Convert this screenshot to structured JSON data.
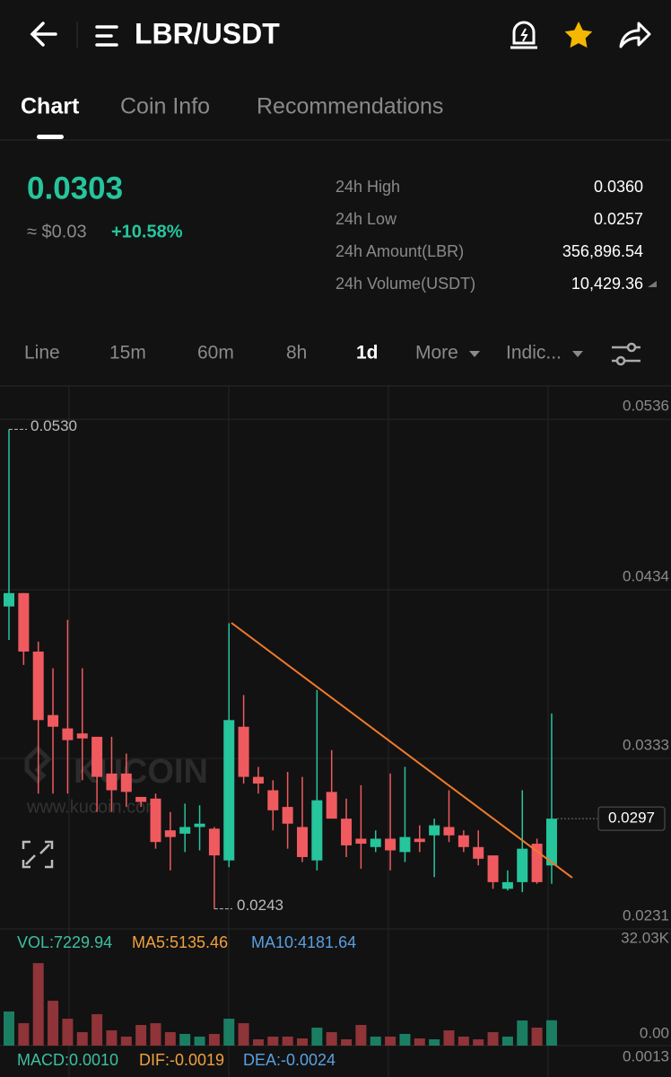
{
  "header": {
    "title": "LBR/USDT"
  },
  "tabs": [
    "Chart",
    "Coin Info",
    "Recommendations"
  ],
  "ticker": {
    "price": "0.0303",
    "fiat": "≈ $0.03",
    "change": "+10.58%",
    "stats": [
      {
        "label": "24h High",
        "value": "0.0360"
      },
      {
        "label": "24h Low",
        "value": "0.0257"
      },
      {
        "label": "24h Amount(LBR)",
        "value": "356,896.54"
      },
      {
        "label": "24h Volume(USDT)",
        "value": "10,429.36"
      }
    ]
  },
  "intervals": [
    "Line",
    "15m",
    "60m",
    "8h",
    "1d",
    "More",
    "Indic..."
  ],
  "watermark": {
    "logo": "KUCOIN",
    "url": "www.kucoin.com"
  },
  "indicators": {
    "vol": "VOL:7229.94",
    "ma5": "MA5:5135.46",
    "ma10": "MA10:4181.64",
    "macd": "MACD:0.0010",
    "dif": "DIF:-0.0019",
    "dea": "DEA:-0.0024",
    "macd_axis": "0.0013"
  },
  "chart_data": {
    "type": "candlestick",
    "up_color": "#26c59c",
    "down_color": "#ef5a5f",
    "ylim": [
      0.0231,
      0.0556
    ],
    "yticks": [
      0.0536,
      0.0434,
      0.0333,
      0.0231
    ],
    "high_marker": {
      "value": 0.053,
      "label": "0.0530"
    },
    "low_marker": 0.0243,
    "last_price": 0.0297,
    "candles": [
      {
        "open": 0.0424,
        "high": 0.053,
        "low": 0.0404,
        "close": 0.0432
      },
      {
        "open": 0.0432,
        "high": 0.0432,
        "low": 0.0389,
        "close": 0.0397
      },
      {
        "open": 0.0397,
        "high": 0.0403,
        "low": 0.0312,
        "close": 0.0356
      },
      {
        "open": 0.0359,
        "high": 0.0387,
        "low": 0.0312,
        "close": 0.0352
      },
      {
        "open": 0.0351,
        "high": 0.0416,
        "low": 0.0312,
        "close": 0.0344
      },
      {
        "open": 0.0348,
        "high": 0.0387,
        "low": 0.032,
        "close": 0.0345
      },
      {
        "open": 0.0346,
        "high": 0.0346,
        "low": 0.0301,
        "close": 0.0322
      },
      {
        "open": 0.0324,
        "high": 0.0346,
        "low": 0.0301,
        "close": 0.0314
      },
      {
        "open": 0.0324,
        "high": 0.0336,
        "low": 0.0304,
        "close": 0.0313
      },
      {
        "open": 0.031,
        "high": 0.031,
        "low": 0.0304,
        "close": 0.0307
      },
      {
        "open": 0.0309,
        "high": 0.0312,
        "low": 0.0279,
        "close": 0.0283
      },
      {
        "open": 0.029,
        "high": 0.0301,
        "low": 0.0266,
        "close": 0.0286
      },
      {
        "open": 0.0288,
        "high": 0.0306,
        "low": 0.0277,
        "close": 0.0292
      },
      {
        "open": 0.0292,
        "high": 0.0305,
        "low": 0.0278,
        "close": 0.0294
      },
      {
        "open": 0.0291,
        "high": 0.0292,
        "low": 0.0243,
        "close": 0.0275
      },
      {
        "open": 0.0272,
        "high": 0.0414,
        "low": 0.0268,
        "close": 0.0356
      },
      {
        "open": 0.0352,
        "high": 0.0371,
        "low": 0.0318,
        "close": 0.0322
      },
      {
        "open": 0.0322,
        "high": 0.0328,
        "low": 0.0312,
        "close": 0.0318
      },
      {
        "open": 0.0314,
        "high": 0.032,
        "low": 0.029,
        "close": 0.0302
      },
      {
        "open": 0.0304,
        "high": 0.0325,
        "low": 0.0279,
        "close": 0.0294
      },
      {
        "open": 0.0292,
        "high": 0.0322,
        "low": 0.0271,
        "close": 0.0274
      },
      {
        "open": 0.0272,
        "high": 0.0374,
        "low": 0.0266,
        "close": 0.0308
      },
      {
        "open": 0.0313,
        "high": 0.0338,
        "low": 0.0297,
        "close": 0.0297
      },
      {
        "open": 0.0297,
        "high": 0.0309,
        "low": 0.0274,
        "close": 0.0281
      },
      {
        "open": 0.0285,
        "high": 0.0317,
        "low": 0.0267,
        "close": 0.0282
      },
      {
        "open": 0.028,
        "high": 0.029,
        "low": 0.0277,
        "close": 0.0285
      },
      {
        "open": 0.0285,
        "high": 0.0324,
        "low": 0.0266,
        "close": 0.0278
      },
      {
        "open": 0.0277,
        "high": 0.0328,
        "low": 0.0271,
        "close": 0.0286
      },
      {
        "open": 0.0285,
        "high": 0.0293,
        "low": 0.0277,
        "close": 0.0283
      },
      {
        "open": 0.0287,
        "high": 0.0297,
        "low": 0.0262,
        "close": 0.0293
      },
      {
        "open": 0.0292,
        "high": 0.0314,
        "low": 0.0283,
        "close": 0.0287
      },
      {
        "open": 0.0287,
        "high": 0.029,
        "low": 0.0277,
        "close": 0.028
      },
      {
        "open": 0.028,
        "high": 0.029,
        "low": 0.0269,
        "close": 0.0273
      },
      {
        "open": 0.0275,
        "high": 0.0275,
        "low": 0.0255,
        "close": 0.0259
      },
      {
        "open": 0.0255,
        "high": 0.0266,
        "low": 0.0254,
        "close": 0.0259
      },
      {
        "open": 0.0259,
        "high": 0.0314,
        "low": 0.0253,
        "close": 0.0279
      },
      {
        "open": 0.0282,
        "high": 0.0285,
        "low": 0.0258,
        "close": 0.0259
      },
      {
        "open": 0.0269,
        "high": 0.036,
        "low": 0.0258,
        "close": 0.0297
      }
    ],
    "volume": {
      "ylim": [
        0,
        32030
      ],
      "yticks": [
        {
          "value": 32030,
          "label": "32.03K"
        },
        {
          "value": 0,
          "label": "0.00"
        }
      ],
      "values": [
        9730,
        6400,
        23550,
        12800,
        7680,
        3840,
        8960,
        4350,
        2560,
        5890,
        6400,
        3840,
        3330,
        2560,
        3330,
        7680,
        6400,
        1790,
        2560,
        2560,
        2050,
        5120,
        3840,
        1790,
        5890,
        2560,
        2560,
        3330,
        2050,
        1790,
        4350,
        2560,
        1790,
        3840,
        2560,
        7170,
        5120,
        7229.94
      ]
    }
  }
}
